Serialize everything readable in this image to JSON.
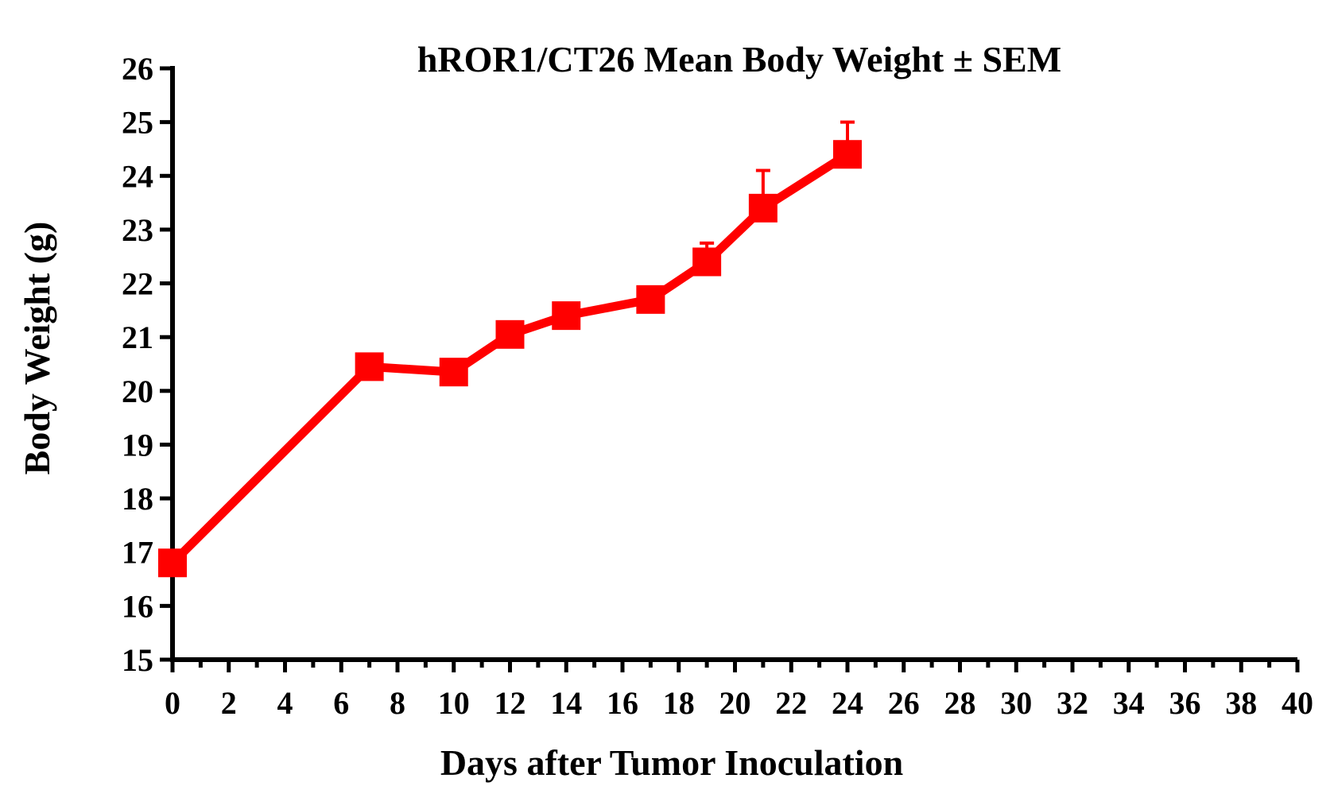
{
  "chart_data": {
    "type": "line",
    "title": "hROR1/CT26 Mean Body Weight ± SEM",
    "xlabel": "Days after Tumor Inoculation",
    "ylabel": "Body Weight (g)",
    "xlim": [
      0,
      40
    ],
    "ylim": [
      15,
      26
    ],
    "x_ticks": [
      0,
      2,
      4,
      6,
      8,
      10,
      12,
      14,
      16,
      18,
      20,
      22,
      24,
      26,
      28,
      30,
      32,
      34,
      36,
      38,
      40
    ],
    "y_ticks": [
      15,
      16,
      17,
      18,
      19,
      20,
      21,
      22,
      23,
      24,
      25,
      26
    ],
    "grid": false,
    "series": [
      {
        "color": "#ff0000",
        "marker": "square",
        "x": [
          0,
          7,
          10,
          12,
          14,
          17,
          19,
          21,
          24
        ],
        "y": [
          16.8,
          20.45,
          20.35,
          21.05,
          21.4,
          21.7,
          22.4,
          23.4,
          24.4
        ],
        "sem": [
          0.1,
          0.2,
          0.1,
          0.1,
          0.1,
          0.1,
          0.35,
          0.7,
          0.6
        ]
      }
    ]
  }
}
